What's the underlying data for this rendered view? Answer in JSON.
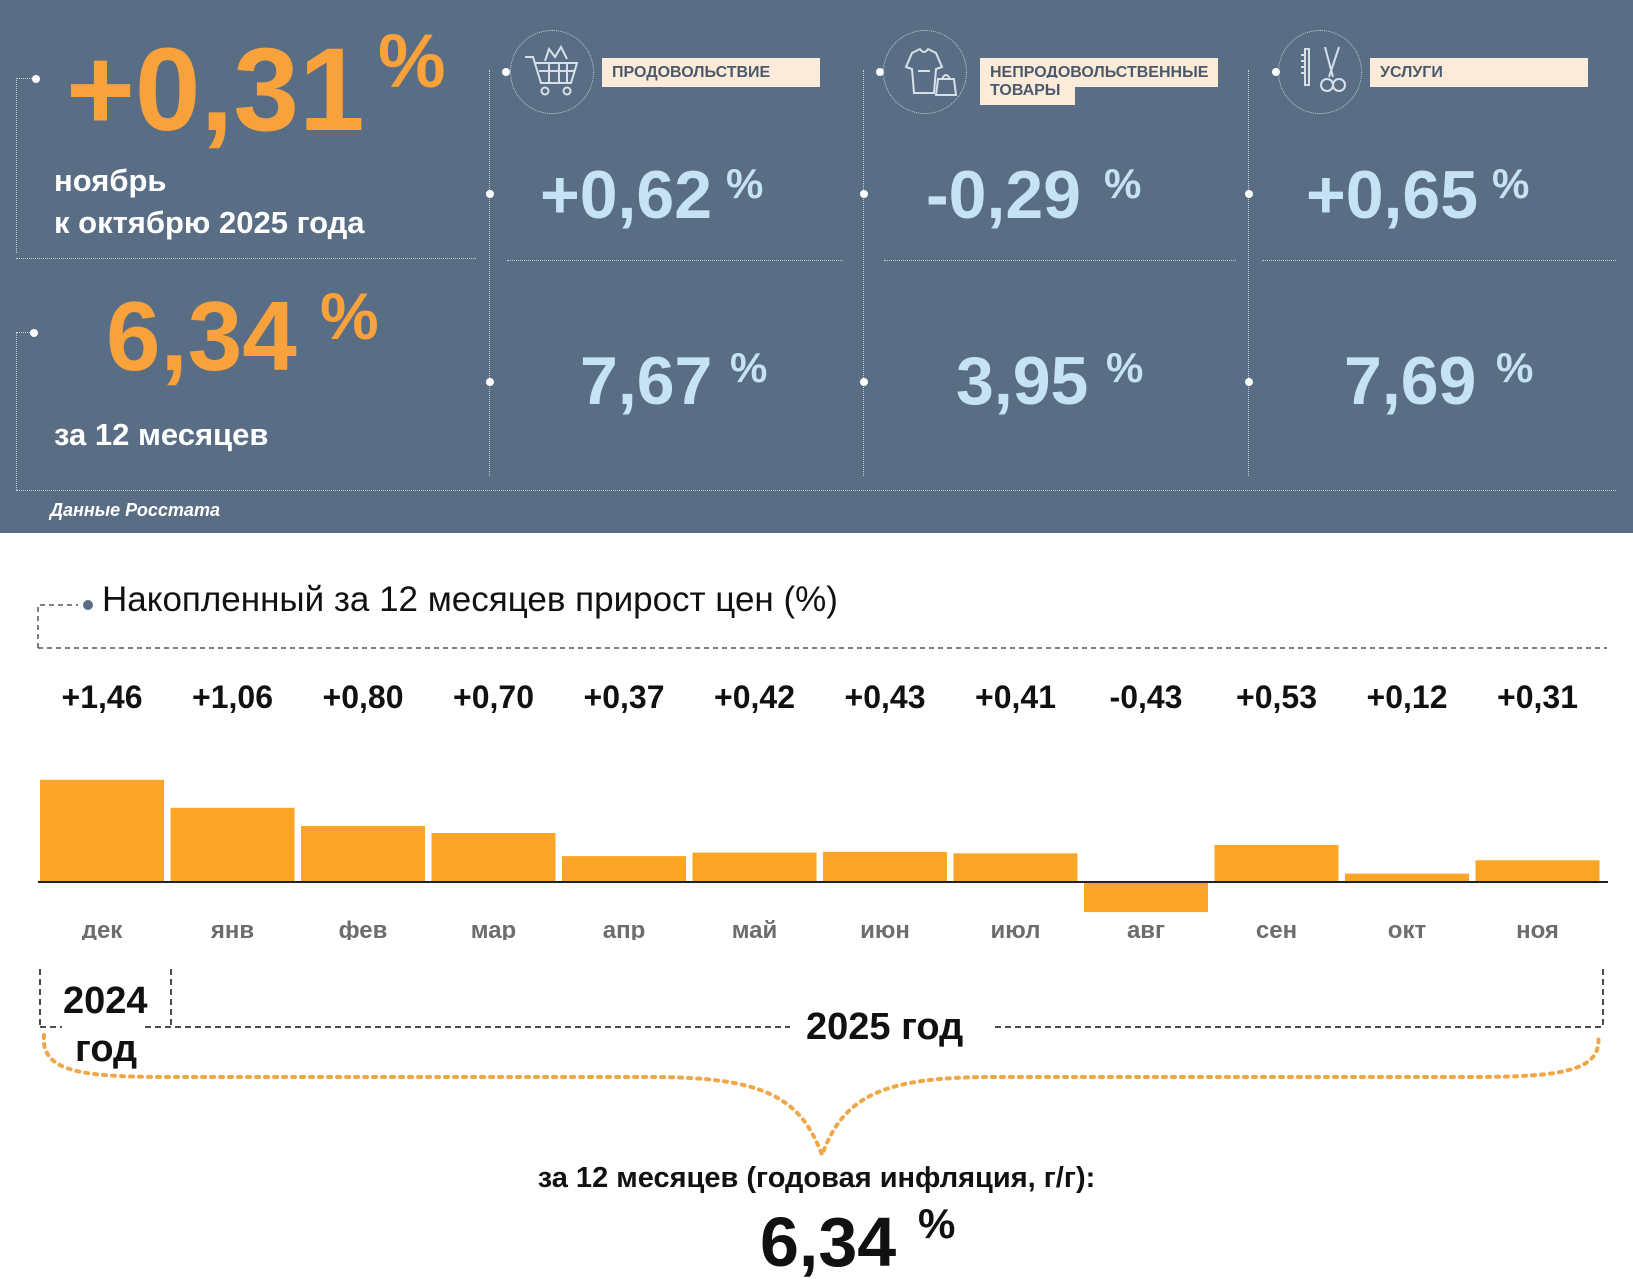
{
  "panel": {
    "headline": {
      "monthly_value": "+0,31",
      "monthly_pct": "%",
      "monthly_caption_line1": "ноябрь",
      "monthly_caption_line2": "к октябрю 2025 года",
      "annual_value": "6,34",
      "annual_pct": "%",
      "annual_caption": "за 12 месяцев"
    },
    "categories": [
      {
        "icon": "shopping-cart-icon",
        "label": "ПРОДОВОЛЬСТВИЕ",
        "monthly": "+0,62",
        "annual": "7,67",
        "pct": "%"
      },
      {
        "icon": "clothing-icon",
        "label_line1": "НЕПРОДОВОЛЬСТВЕННЫЕ",
        "label_line2": "ТОВАРЫ",
        "monthly": "-0,29",
        "annual": "3,95",
        "pct": "%"
      },
      {
        "icon": "scissors-icon",
        "label": "УСЛУГИ",
        "monthly": "+0,65",
        "annual": "7,69",
        "pct": "%"
      }
    ],
    "source": "Данные Росстата",
    "colors": {
      "panel_bg": "#596e85",
      "accent_orange": "#f9a23b",
      "value_blue": "#c5e3f5",
      "label_bg": "#fcebd8"
    }
  },
  "chart_data": {
    "type": "bar",
    "title": "Накопленный за 12 месяцев прирост цен (%)",
    "categories": [
      "дек",
      "янв",
      "фев",
      "мар",
      "апр",
      "май",
      "июн",
      "июл",
      "авг",
      "сен",
      "окт",
      "ноя"
    ],
    "values": [
      1.46,
      1.06,
      0.8,
      0.7,
      0.37,
      0.42,
      0.43,
      0.41,
      -0.43,
      0.53,
      0.12,
      0.31
    ],
    "value_labels": [
      "+1,46",
      "+1,06",
      "+0,80",
      "+0,70",
      "+0,37",
      "+0,42",
      "+0,43",
      "+0,41",
      "-0,43",
      "+0,53",
      "+0,12",
      "+0,31"
    ],
    "bar_color": "#faa526",
    "year_labels": {
      "first": "2024",
      "first_line2": "год",
      "second": "2025 год"
    },
    "summary_text": "за 12 месяцев (годовая инфляция, г/г):",
    "summary_value": "6,34",
    "summary_pct": "%"
  }
}
